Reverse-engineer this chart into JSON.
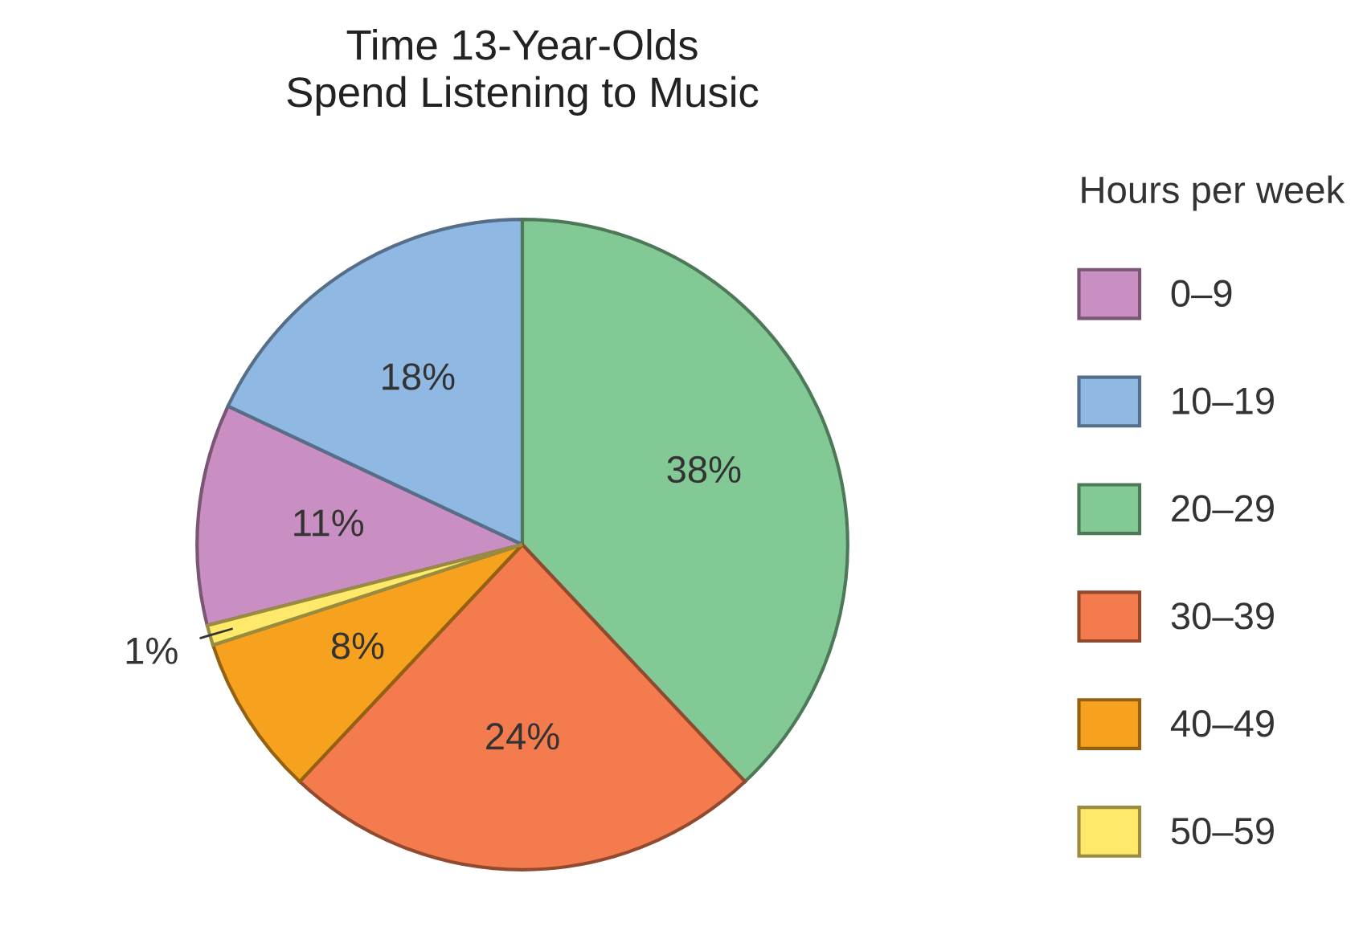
{
  "chart_data": {
    "type": "pie",
    "title": "Time 13-Year-Olds\nSpend Listening to Music",
    "legend_title": "Hours per week",
    "categories": [
      "0–9",
      "10–19",
      "20–29",
      "30–39",
      "40–49",
      "50–59"
    ],
    "values": [
      11,
      18,
      38,
      24,
      8,
      1
    ],
    "value_labels": [
      "11%",
      "18%",
      "38%",
      "24%",
      "8%",
      "1%"
    ],
    "colors": [
      "#c98fc2",
      "#8fb8e3",
      "#82c995",
      "#f47b4e",
      "#f6a21e",
      "#ffe96b"
    ],
    "legend": "right"
  }
}
